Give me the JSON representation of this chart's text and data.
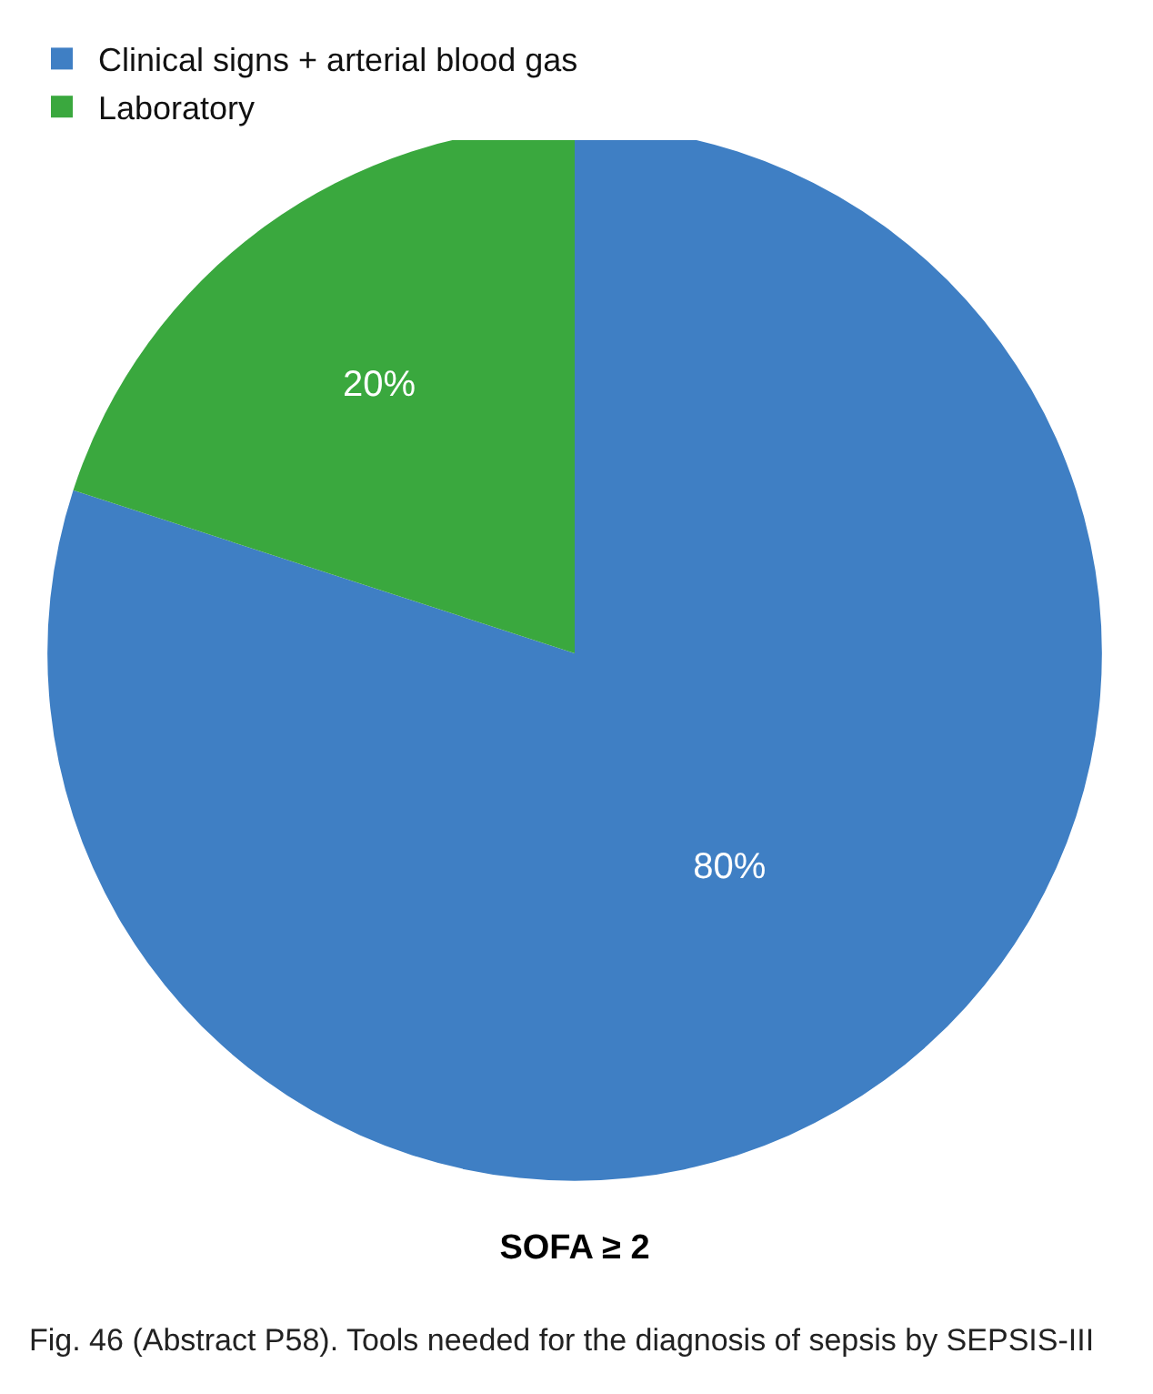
{
  "chart_data": {
    "type": "pie",
    "title": "SOFA ≥ 2",
    "categories": [
      "Clinical signs + arterial blood gas",
      "Laboratory"
    ],
    "values": [
      80,
      20
    ],
    "colors": [
      "#3f7fc4",
      "#3aa83e"
    ],
    "value_labels": [
      "80%",
      "20%"
    ],
    "legend": "top",
    "annotations": [
      "Fig. 46 (Abstract P58). Tools needed for the diagnosis of sepsis by SEPSIS-III"
    ]
  }
}
